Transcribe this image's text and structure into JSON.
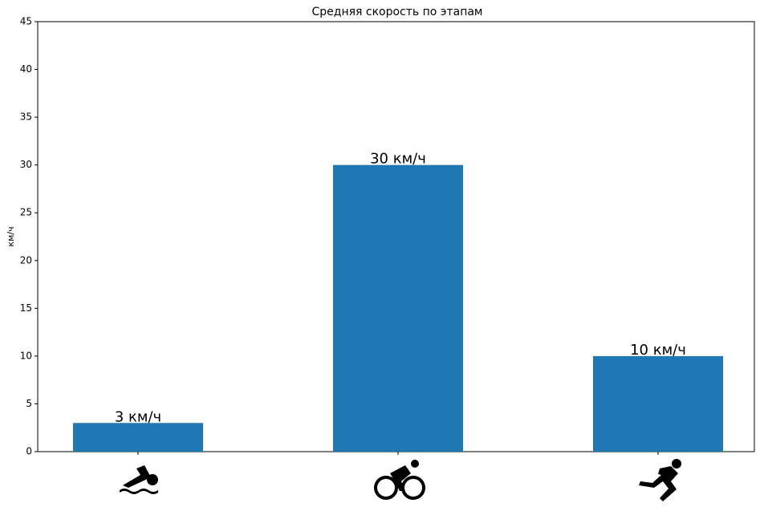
{
  "chart_data": {
    "type": "bar",
    "title": "Средняя скорость по этапам",
    "y_label": "км/ч",
    "categories": [
      null,
      null,
      null
    ],
    "values": [
      3,
      30,
      10
    ],
    "value_labels": [
      "3 км/ч",
      "30 км/ч",
      "10 км/ч"
    ],
    "color": "#1f77b4",
    "ylim": [
      0,
      45
    ],
    "yticks": [
      0,
      5,
      10,
      15,
      20,
      25,
      30,
      35,
      40,
      45
    ],
    "grid": false
  }
}
